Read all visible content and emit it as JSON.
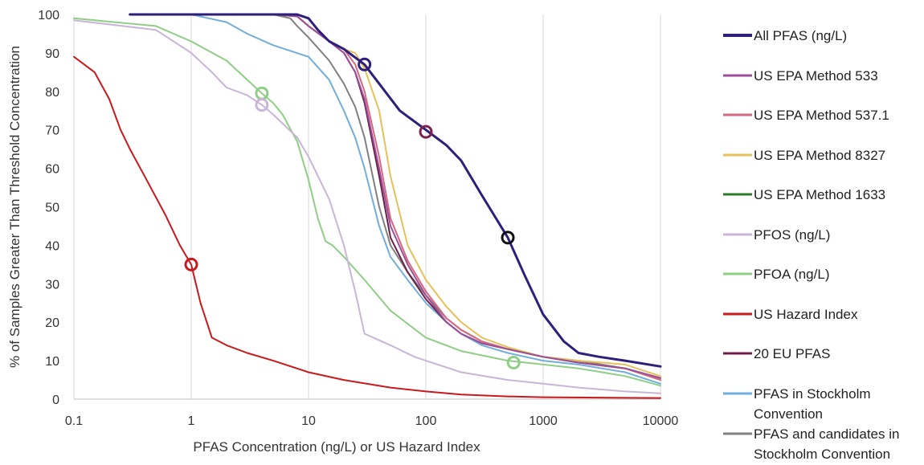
{
  "chart_data": {
    "type": "line",
    "title": "",
    "xlabel": "PFAS Concentration (ng/L) or US Hazard Index",
    "ylabel": "% of Samples Greater Than Threshold Concentration",
    "x_scale": "log",
    "xlim": [
      0.1,
      10000
    ],
    "ylim": [
      0,
      100
    ],
    "x_ticks": [
      0.1,
      1,
      10,
      100,
      1000,
      10000
    ],
    "x_tick_labels": [
      "0.1",
      "1",
      "10",
      "100",
      "1000",
      "10000"
    ],
    "y_ticks": [
      0,
      10,
      20,
      30,
      40,
      50,
      60,
      70,
      80,
      90,
      100
    ],
    "y_tick_labels": [
      "0",
      "10",
      "20",
      "30",
      "40",
      "50",
      "60",
      "70",
      "80",
      "90",
      "100"
    ],
    "grid": "vertical",
    "legend_position": "right",
    "series": [
      {
        "name": "All PFAS (ng/L)",
        "color": "#2e1f7a",
        "width": 3,
        "points": [
          [
            0.3,
            100
          ],
          [
            5,
            100
          ],
          [
            8,
            100
          ],
          [
            10,
            99
          ],
          [
            12,
            96
          ],
          [
            15,
            93
          ],
          [
            20,
            91
          ],
          [
            30,
            87
          ],
          [
            40,
            82
          ],
          [
            60,
            75
          ],
          [
            100,
            70
          ],
          [
            150,
            66
          ],
          [
            200,
            62
          ],
          [
            300,
            53
          ],
          [
            500,
            42
          ],
          [
            700,
            32
          ],
          [
            1000,
            22
          ],
          [
            1500,
            15
          ],
          [
            2000,
            12
          ],
          [
            3000,
            11
          ],
          [
            5000,
            10
          ],
          [
            10000,
            8.5
          ]
        ]
      },
      {
        "name": "US EPA Method 533",
        "color": "#9b4f9b",
        "width": 2,
        "points": [
          [
            0.3,
            100
          ],
          [
            5,
            100
          ],
          [
            8,
            99.5
          ],
          [
            10,
            97
          ],
          [
            15,
            93
          ],
          [
            20,
            90
          ],
          [
            25,
            85
          ],
          [
            30,
            78
          ],
          [
            40,
            60
          ],
          [
            50,
            45
          ],
          [
            70,
            35
          ],
          [
            100,
            27
          ],
          [
            150,
            20
          ],
          [
            200,
            17
          ],
          [
            300,
            14.5
          ],
          [
            500,
            13
          ],
          [
            1000,
            11
          ],
          [
            2000,
            9.5
          ],
          [
            5000,
            8
          ],
          [
            10000,
            5.5
          ]
        ]
      },
      {
        "name": "US EPA Method 537.1",
        "color": "#d6677e",
        "width": 2,
        "points": [
          [
            0.3,
            100
          ],
          [
            5,
            100
          ],
          [
            8,
            99.5
          ],
          [
            10,
            97
          ],
          [
            15,
            93
          ],
          [
            20,
            91
          ],
          [
            25,
            87
          ],
          [
            30,
            80
          ],
          [
            40,
            63
          ],
          [
            50,
            47
          ],
          [
            70,
            36
          ],
          [
            100,
            28
          ],
          [
            150,
            21
          ],
          [
            200,
            18
          ],
          [
            300,
            15
          ],
          [
            500,
            13
          ],
          [
            1000,
            11
          ],
          [
            2000,
            9.5
          ],
          [
            5000,
            8
          ],
          [
            10000,
            5
          ]
        ]
      },
      {
        "name": "US EPA Method 8327",
        "color": "#e6c15a",
        "width": 2,
        "points": [
          [
            0.3,
            100
          ],
          [
            5,
            100
          ],
          [
            8,
            99.5
          ],
          [
            10,
            97
          ],
          [
            15,
            93
          ],
          [
            20,
            91
          ],
          [
            25,
            90
          ],
          [
            30,
            86
          ],
          [
            40,
            75
          ],
          [
            50,
            58
          ],
          [
            70,
            40
          ],
          [
            100,
            31
          ],
          [
            150,
            24
          ],
          [
            200,
            20
          ],
          [
            300,
            16
          ],
          [
            500,
            13.5
          ],
          [
            1000,
            11
          ],
          [
            2000,
            10
          ],
          [
            5000,
            9
          ],
          [
            10000,
            6
          ]
        ]
      },
      {
        "name": "US EPA Method 1633",
        "color": "#2c7a2c",
        "width": 2,
        "points": [
          [
            0.3,
            100
          ],
          [
            5,
            100
          ],
          [
            8,
            99.5
          ],
          [
            10,
            97
          ],
          [
            15,
            93
          ],
          [
            20,
            91
          ],
          [
            30,
            87
          ],
          [
            40,
            82
          ],
          [
            60,
            75
          ],
          [
            100,
            70
          ],
          [
            150,
            66
          ],
          [
            200,
            62
          ],
          [
            300,
            53
          ],
          [
            500,
            42
          ],
          [
            700,
            32
          ],
          [
            1000,
            22
          ],
          [
            1500,
            15
          ],
          [
            2000,
            12
          ],
          [
            3000,
            11
          ],
          [
            5000,
            10
          ],
          [
            10000,
            8.5
          ]
        ]
      },
      {
        "name": "PFOS (ng/L)",
        "color": "#c9b5d6",
        "width": 2,
        "points": [
          [
            0.1,
            98.5
          ],
          [
            0.5,
            96
          ],
          [
            1,
            90
          ],
          [
            1.5,
            85
          ],
          [
            2,
            81
          ],
          [
            3,
            79
          ],
          [
            4,
            76.5
          ],
          [
            5,
            74
          ],
          [
            8,
            68
          ],
          [
            10,
            63
          ],
          [
            15,
            52
          ],
          [
            20,
            40
          ],
          [
            25,
            28
          ],
          [
            30,
            17
          ],
          [
            50,
            14
          ],
          [
            80,
            11
          ],
          [
            100,
            10
          ],
          [
            200,
            7
          ],
          [
            500,
            5
          ],
          [
            1000,
            4
          ],
          [
            2000,
            3
          ],
          [
            5000,
            2
          ],
          [
            10000,
            1.5
          ]
        ]
      },
      {
        "name": "PFOA (ng/L)",
        "color": "#8fce85",
        "width": 2,
        "points": [
          [
            0.1,
            99
          ],
          [
            0.5,
            97
          ],
          [
            1,
            93
          ],
          [
            2,
            88
          ],
          [
            3,
            83
          ],
          [
            4,
            79.5
          ],
          [
            5,
            77
          ],
          [
            6,
            74
          ],
          [
            8,
            67
          ],
          [
            10,
            57
          ],
          [
            12,
            47
          ],
          [
            14,
            41
          ],
          [
            16,
            40
          ],
          [
            20,
            37
          ],
          [
            30,
            31
          ],
          [
            50,
            23
          ],
          [
            100,
            16
          ],
          [
            200,
            12.5
          ],
          [
            500,
            10
          ],
          [
            1000,
            9
          ],
          [
            2000,
            8
          ],
          [
            5000,
            6
          ],
          [
            10000,
            3.5
          ]
        ]
      },
      {
        "name": "US Hazard Index",
        "color": "#c9191c",
        "width": 2,
        "points": [
          [
            0.1,
            89
          ],
          [
            0.15,
            85
          ],
          [
            0.2,
            78
          ],
          [
            0.25,
            70
          ],
          [
            0.3,
            65
          ],
          [
            0.4,
            58
          ],
          [
            0.6,
            48
          ],
          [
            0.8,
            40
          ],
          [
            1,
            35
          ],
          [
            1.2,
            25
          ],
          [
            1.5,
            16
          ],
          [
            2,
            14
          ],
          [
            3,
            12
          ],
          [
            5,
            10
          ],
          [
            10,
            7
          ],
          [
            20,
            5
          ],
          [
            50,
            3
          ],
          [
            100,
            2
          ],
          [
            200,
            1.2
          ],
          [
            500,
            0.7
          ],
          [
            1000,
            0.5
          ],
          [
            10000,
            0.3
          ]
        ]
      },
      {
        "name": "20 EU PFAS",
        "color": "#6b1f48",
        "width": 2,
        "points": [
          [
            0.3,
            100
          ],
          [
            5,
            100
          ],
          [
            8,
            99.5
          ],
          [
            10,
            97
          ],
          [
            15,
            93
          ],
          [
            20,
            90
          ],
          [
            25,
            85
          ],
          [
            30,
            77
          ],
          [
            40,
            58
          ],
          [
            50,
            42
          ],
          [
            70,
            33
          ],
          [
            100,
            26
          ],
          [
            150,
            20
          ],
          [
            200,
            17
          ],
          [
            300,
            14.5
          ],
          [
            500,
            13
          ],
          [
            1000,
            11
          ],
          [
            2000,
            9.5
          ],
          [
            5000,
            8
          ],
          [
            10000,
            5.5
          ]
        ]
      },
      {
        "name": "PFAS in Stockholm\nConvention",
        "color": "#72aedb",
        "width": 2,
        "points": [
          [
            0.3,
            100
          ],
          [
            1,
            100
          ],
          [
            2,
            98
          ],
          [
            3,
            95
          ],
          [
            5,
            92
          ],
          [
            10,
            89
          ],
          [
            15,
            83
          ],
          [
            20,
            75
          ],
          [
            25,
            68
          ],
          [
            30,
            60
          ],
          [
            40,
            45
          ],
          [
            50,
            37
          ],
          [
            70,
            31
          ],
          [
            100,
            25
          ],
          [
            150,
            20
          ],
          [
            200,
            17
          ],
          [
            300,
            14
          ],
          [
            500,
            12
          ],
          [
            1000,
            10
          ],
          [
            2000,
            9
          ],
          [
            5000,
            7
          ],
          [
            10000,
            4
          ]
        ]
      },
      {
        "name": "PFAS and candidates in\nStockholm Convention",
        "color": "#808080",
        "width": 2,
        "points": [
          [
            0.3,
            100
          ],
          [
            5,
            100
          ],
          [
            7,
            99
          ],
          [
            8,
            97
          ],
          [
            10,
            94
          ],
          [
            15,
            88
          ],
          [
            20,
            82
          ],
          [
            25,
            76
          ],
          [
            30,
            68
          ],
          [
            40,
            50
          ],
          [
            50,
            40
          ],
          [
            70,
            33
          ],
          [
            100,
            27
          ],
          [
            150,
            21
          ],
          [
            200,
            18
          ],
          [
            300,
            15
          ],
          [
            500,
            13
          ],
          [
            1000,
            11
          ],
          [
            2000,
            10
          ],
          [
            5000,
            8
          ],
          [
            10000,
            5
          ]
        ]
      }
    ],
    "markers": [
      {
        "x": 30,
        "y": 87,
        "color": "#2e1f7a"
      },
      {
        "x": 100,
        "y": 69.5,
        "color": "#7d1f4f"
      },
      {
        "x": 500,
        "y": 42,
        "color": "#111111"
      },
      {
        "x": 4,
        "y": 79.5,
        "color": "#8fce85"
      },
      {
        "x": 4,
        "y": 76.5,
        "color": "#c9b5d6"
      },
      {
        "x": 560,
        "y": 9.5,
        "color": "#8fce85"
      },
      {
        "x": 1,
        "y": 35,
        "color": "#c9191c"
      }
    ]
  }
}
